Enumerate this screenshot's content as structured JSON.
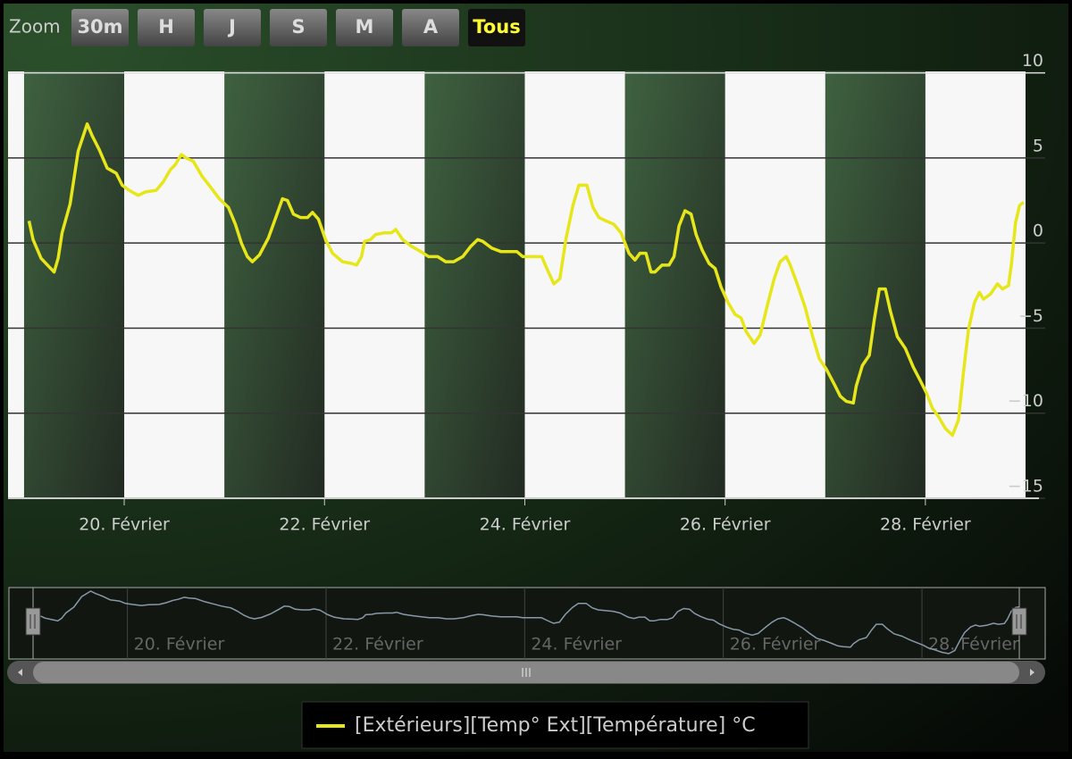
{
  "zoom": {
    "label": "Zoom",
    "buttons": [
      "30m",
      "H",
      "J",
      "S",
      "M",
      "A",
      "Tous"
    ],
    "selected": 6
  },
  "chart_data": {
    "type": "line",
    "series": [
      {
        "name": "[Extérieurs][Temp° Ext][Température] °C",
        "color": "#e6e619",
        "x": [
          19.05,
          19.09,
          19.17,
          19.25,
          19.3,
          19.34,
          19.38,
          19.46,
          19.54,
          19.63,
          19.68,
          19.75,
          19.83,
          19.92,
          19.98,
          20.05,
          20.14,
          20.21,
          20.32,
          20.39,
          20.46,
          20.51,
          20.57,
          20.62,
          20.69,
          20.78,
          20.86,
          20.95,
          21.04,
          21.11,
          21.17,
          21.23,
          21.28,
          21.35,
          21.44,
          21.52,
          21.58,
          21.63,
          21.69,
          21.76,
          21.83,
          21.88,
          21.94,
          22.01,
          22.08,
          22.18,
          22.27,
          22.32,
          22.37,
          22.4,
          22.46,
          22.51,
          22.6,
          22.67,
          22.71,
          22.78,
          22.87,
          22.96,
          23.04,
          23.13,
          23.21,
          23.29,
          23.38,
          23.46,
          23.53,
          23.58,
          23.67,
          23.76,
          23.85,
          23.92,
          23.98,
          24.07,
          24.17,
          24.22,
          24.29,
          24.35,
          24.41,
          24.48,
          24.54,
          24.62,
          24.68,
          24.74,
          24.81,
          24.89,
          24.96,
          25.04,
          25.1,
          25.15,
          25.21,
          25.26,
          25.3,
          25.37,
          25.44,
          25.49,
          25.54,
          25.6,
          25.66,
          25.71,
          25.77,
          25.84,
          25.9,
          25.96,
          26.03,
          26.1,
          26.16,
          26.21,
          26.29,
          26.35,
          26.42,
          26.49,
          26.55,
          26.61,
          26.65,
          26.72,
          26.8,
          26.87,
          26.94,
          27.01,
          27.09,
          27.15,
          27.21,
          27.28,
          27.31,
          27.37,
          27.44,
          27.49,
          27.54,
          27.6,
          27.65,
          27.72,
          27.8,
          27.88,
          27.95,
          28.01,
          28.07,
          28.13,
          28.2,
          28.27,
          28.33,
          28.38,
          28.43,
          28.49,
          28.54,
          28.58,
          28.65,
          28.72,
          28.77,
          28.83,
          28.86,
          28.9,
          28.94,
          28.98
        ],
        "values": [
          1.3,
          0.2,
          -0.9,
          -1.4,
          -1.7,
          -0.9,
          0.6,
          2.3,
          5.4,
          7.0,
          6.3,
          5.5,
          4.4,
          4.1,
          3.4,
          3.1,
          2.8,
          3.0,
          3.1,
          3.6,
          4.3,
          4.6,
          5.2,
          5.0,
          4.8,
          3.9,
          3.3,
          2.6,
          2.1,
          1.1,
          0.0,
          -0.8,
          -1.1,
          -0.7,
          0.3,
          1.6,
          2.6,
          2.5,
          1.7,
          1.5,
          1.5,
          1.8,
          1.4,
          0.2,
          -0.6,
          -1.1,
          -1.2,
          -1.3,
          -0.8,
          0.1,
          0.2,
          0.5,
          0.6,
          0.6,
          0.8,
          0.2,
          -0.2,
          -0.5,
          -0.8,
          -0.8,
          -1.1,
          -1.1,
          -0.8,
          -0.2,
          0.2,
          0.1,
          -0.3,
          -0.5,
          -0.5,
          -0.5,
          -0.8,
          -0.8,
          -0.8,
          -1.5,
          -2.4,
          -2.1,
          0.2,
          2.2,
          3.4,
          3.4,
          2.1,
          1.5,
          1.3,
          1.1,
          0.6,
          -0.6,
          -1.0,
          -0.6,
          -0.6,
          -1.7,
          -1.7,
          -1.3,
          -1.3,
          -0.8,
          1.0,
          1.9,
          1.7,
          0.5,
          -0.4,
          -1.2,
          -1.5,
          -2.6,
          -3.5,
          -4.2,
          -4.4,
          -5.2,
          -5.9,
          -5.4,
          -3.7,
          -2.1,
          -1.1,
          -0.8,
          -1.3,
          -2.4,
          -3.8,
          -5.4,
          -6.8,
          -7.4,
          -8.3,
          -9.0,
          -9.3,
          -9.4,
          -8.4,
          -7.2,
          -6.6,
          -4.5,
          -2.7,
          -2.7,
          -4.0,
          -5.5,
          -6.2,
          -7.3,
          -8.1,
          -8.8,
          -9.7,
          -10.2,
          -10.9,
          -11.3,
          -10.4,
          -7.6,
          -5.1,
          -3.5,
          -2.9,
          -3.3,
          -3.0,
          -2.4,
          -2.7,
          -2.5,
          -1.2,
          1.2,
          2.2,
          2.4
        ]
      }
    ],
    "xlim": [
      18.84,
      29.0
    ],
    "xticks": [
      {
        "value": 20,
        "label": "20. Février"
      },
      {
        "value": 22,
        "label": "22. Février"
      },
      {
        "value": 24,
        "label": "24. Février"
      },
      {
        "value": 26,
        "label": "26. Février"
      },
      {
        "value": 28,
        "label": "28. Février"
      }
    ],
    "ylim": [
      -15,
      10
    ],
    "yticks": [
      {
        "value": -15,
        "label": "−15"
      },
      {
        "value": -10,
        "label": "−10"
      },
      {
        "value": -5,
        "label": "−5"
      },
      0,
      5,
      10
    ],
    "plot_bands": [
      [
        19,
        20
      ],
      [
        21,
        22
      ],
      [
        23,
        24
      ],
      [
        25,
        26
      ],
      [
        27,
        28
      ]
    ],
    "grid": true
  }
}
